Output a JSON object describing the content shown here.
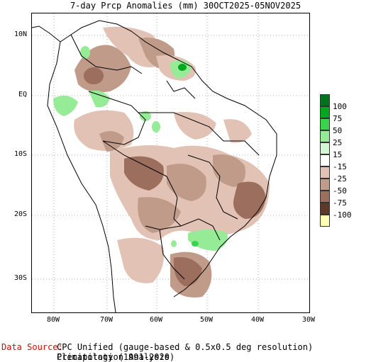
{
  "title": "7-day Prcp Anomalies (mm) 30OCT2025-05NOV2025",
  "lat_labels": [
    "10N",
    "EQ",
    "10S",
    "20S",
    "30S"
  ],
  "lon_labels": [
    "80W",
    "70W",
    "60W",
    "50W",
    "40W",
    "30W"
  ],
  "legend": {
    "labels": [
      "100",
      "75",
      "50",
      "25",
      "15",
      "-15",
      "-25",
      "-50",
      "-75",
      "-100"
    ],
    "colors": [
      "#00741b",
      "#00a81e",
      "#38d54c",
      "#96ec96",
      "#d3f7d3",
      "#ffffff",
      "#e2c2b4",
      "#c19b8a",
      "#9b6e5e",
      "#5e3828",
      "#ffffb3"
    ]
  },
  "source": {
    "label": "Data Source:",
    "line1": "CPC Unified (gauge-based & 0.5x0.5 deg resolution) Precipitation Analysis",
    "line2": "Climatology (1991-2020)"
  },
  "colors": {
    "dry_light": "#e2c2b4",
    "dry_mid": "#c19b8a",
    "dry_dark": "#9b6e5e",
    "wet_light": "#96ec96",
    "wet_mid": "#38d54c",
    "wet_dark": "#00a81e"
  }
}
